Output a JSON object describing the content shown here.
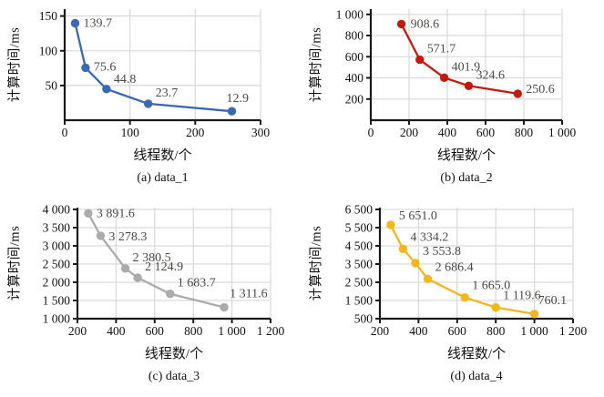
{
  "style": {
    "background": "#ffffff",
    "grid_color": "#d9d9d9",
    "axis_color": "#1a1a1a",
    "tick_label_color": "#111111",
    "data_label_color": "#4a4a46"
  },
  "chart_data": [
    {
      "type": "line",
      "caption": "(a) data_1",
      "xlabel": "线程数/个",
      "ylabel": "计算时间/ms",
      "color": "#3a68b2",
      "x": [
        16,
        32,
        64,
        128,
        256
      ],
      "y": [
        139.7,
        75.6,
        44.8,
        23.7,
        12.9
      ],
      "point_labels": [
        "139.7",
        "75.6",
        "44.8",
        "23.7",
        "12.9"
      ],
      "xlim": [
        0,
        300
      ],
      "ylim": [
        0,
        160
      ],
      "xticks": [
        0,
        100,
        200,
        300
      ],
      "xtick_labels": [
        "0",
        "100",
        "200",
        "300"
      ],
      "yticks": [
        50,
        100,
        150
      ],
      "ytick_labels": [
        "50",
        "100",
        "150"
      ],
      "grid": true,
      "legend": null
    },
    {
      "type": "line",
      "caption": "(b) data_2",
      "xlabel": "线程数/个",
      "ylabel": "计算时间/ms",
      "color": "#c21a10",
      "x": [
        160,
        256,
        384,
        512,
        768
      ],
      "y": [
        908.6,
        571.7,
        401.9,
        324.6,
        250.6
      ],
      "point_labels": [
        "908.6",
        "571.7",
        "401.9",
        "324.6",
        "250.6"
      ],
      "xlim": [
        0,
        1000
      ],
      "ylim": [
        0,
        1050
      ],
      "xticks": [
        0,
        200,
        400,
        600,
        800,
        1000
      ],
      "xtick_labels": [
        "0",
        "200",
        "400",
        "600",
        "800",
        "1 000"
      ],
      "yticks": [
        200,
        400,
        600,
        800,
        1000
      ],
      "ytick_labels": [
        "200",
        "400",
        "600",
        "800",
        "1 000"
      ],
      "grid": true,
      "legend": null
    },
    {
      "type": "line",
      "caption": "(c) data_3",
      "xlabel": "线程数/个",
      "ylabel": "计算时间/ms",
      "color": "#ababab",
      "x": [
        256,
        320,
        448,
        512,
        680,
        960
      ],
      "y": [
        3891.6,
        3278.3,
        2380.5,
        2124.9,
        1683.7,
        1311.6
      ],
      "point_labels": [
        "3 891.6",
        "3 278.3",
        "2 380.5",
        "2 124.9",
        "1 683.7",
        "1 311.6"
      ],
      "xlim": [
        200,
        1200
      ],
      "ylim": [
        1000,
        4050
      ],
      "xticks": [
        200,
        400,
        600,
        800,
        1000,
        1200
      ],
      "xtick_labels": [
        "200",
        "400",
        "600",
        "800",
        "1 000",
        "1 200"
      ],
      "yticks": [
        1000,
        1500,
        2000,
        2500,
        3000,
        3500,
        4000
      ],
      "ytick_labels": [
        "1 000",
        "1 500",
        "2 000",
        "2 500",
        "3 000",
        "3 500",
        "4 000"
      ],
      "grid": true,
      "legend": null
    },
    {
      "type": "line",
      "caption": "(d) data_4",
      "xlabel": "线程数/个",
      "ylabel": "计算时间/ms",
      "color": "#f2b71c",
      "x": [
        256,
        320,
        384,
        448,
        640,
        800,
        1000
      ],
      "y": [
        5651.0,
        4334.2,
        3553.8,
        2686.4,
        1665.0,
        1119.6,
        760.1
      ],
      "point_labels": [
        "5 651.0",
        "4 334.2",
        "3 553.8",
        "2 686.4",
        "1 665.0",
        "1 119.6",
        "760.1"
      ],
      "xlim": [
        200,
        1200
      ],
      "ylim": [
        500,
        6600
      ],
      "xticks": [
        200,
        400,
        600,
        800,
        1000,
        1200
      ],
      "xtick_labels": [
        "200",
        "400",
        "600",
        "800",
        "1 000",
        "1 200"
      ],
      "yticks": [
        500,
        1500,
        2500,
        3500,
        4500,
        5500,
        6500
      ],
      "ytick_labels": [
        "500",
        "1 500",
        "2 500",
        "3 500",
        "4 500",
        "5 500",
        "6 500"
      ],
      "grid": true,
      "legend": null
    }
  ]
}
